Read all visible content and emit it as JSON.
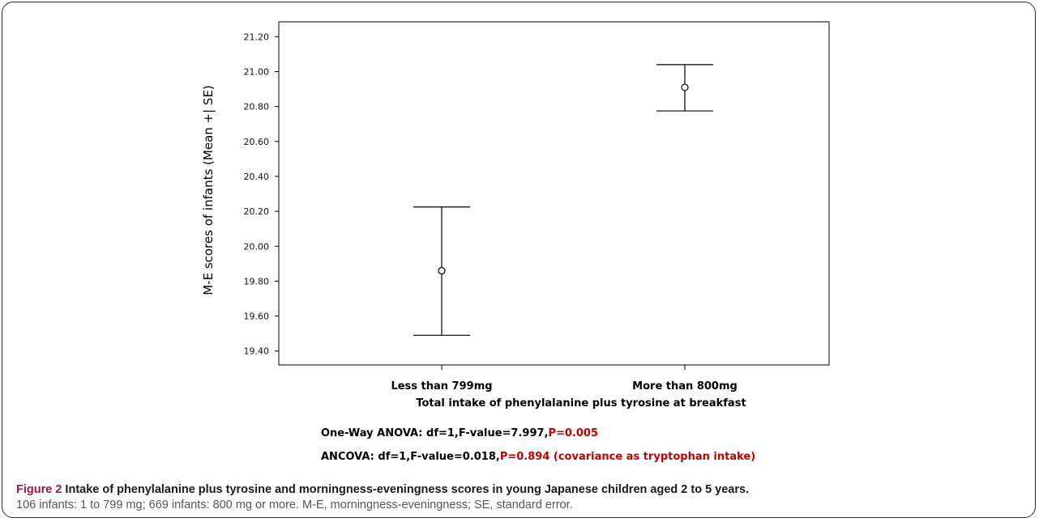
{
  "chart_data": {
    "type": "errorbar",
    "categories": [
      "Less than 799mg",
      "More than 800mg"
    ],
    "means": [
      19.86,
      20.91
    ],
    "lower": [
      19.49,
      20.775
    ],
    "upper": [
      20.225,
      21.04
    ],
    "ylim": [
      19.32,
      21.285
    ],
    "yticks": [
      "19.40",
      "19.60",
      "19.80",
      "20.00",
      "20.20",
      "20.40",
      "20.60",
      "20.80",
      "21.00",
      "21.20"
    ],
    "xlabel": "Total intake of phenylalanine plus tyrosine at breakfast",
    "ylabel": "M-E scores of infants (Mean +| SE)",
    "grid": false
  },
  "stats": {
    "anova_prefix": "One-Way ANOVA: df=1,F-value=7.997,",
    "anova_p": "P=0.005",
    "ancova_prefix": "ANCOVA: df=1,F-value=0.018,",
    "ancova_p": "P=0.894 (covariance as tryptophan intake)",
    "highlight_color": "#c00000"
  },
  "caption": {
    "fig_label": "Figure 2",
    "title": " Intake of phenylalanine plus tyrosine and morningness-eveningness scores in young Japanese children aged 2 to 5 years.",
    "description": "106 infants: 1 to 799 mg; 669 infants: 800 mg or more. M-E, morningness-eveningness; SE, standard error."
  }
}
